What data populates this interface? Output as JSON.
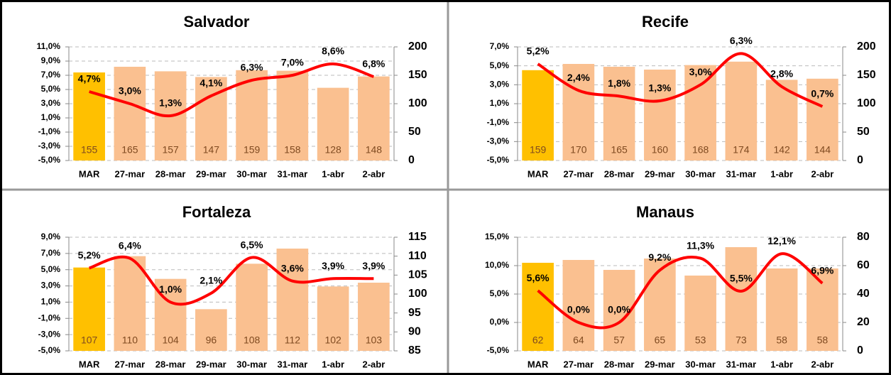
{
  "chart_data": [
    {
      "type": "combo",
      "title": "Salvador",
      "categories": [
        "MAR",
        "27-mar",
        "28-mar",
        "29-mar",
        "30-mar",
        "31-mar",
        "1-abr",
        "2-abr"
      ],
      "ylim": [
        -5,
        11
      ],
      "yticks": [
        {
          "value": -5,
          "label": "-5,0%"
        },
        {
          "value": -3,
          "label": "-3,0%"
        },
        {
          "value": -1,
          "label": "-1,0%"
        },
        {
          "value": 1,
          "label": "1,0%"
        },
        {
          "value": 3,
          "label": "3,0%"
        },
        {
          "value": 5,
          "label": "5,0%"
        },
        {
          "value": 7,
          "label": "7,0%"
        },
        {
          "value": 9,
          "label": "9,0%"
        },
        {
          "value": 11,
          "label": "11,0%"
        }
      ],
      "y2lim": [
        0,
        200
      ],
      "y2ticks": [
        0,
        50,
        100,
        150,
        200
      ],
      "grid": true,
      "series": [
        {
          "type": "bar",
          "axis": "y2",
          "color": "#fac090",
          "first_color": "#ffc000",
          "values": [
            155,
            165,
            157,
            147,
            159,
            158,
            128,
            148
          ]
        },
        {
          "type": "line",
          "color": "#ff0000",
          "values": [
            4.7,
            3.0,
            1.3,
            4.1,
            6.3,
            7.0,
            8.6,
            6.8
          ],
          "value_labels": [
            "4,7%",
            "3,0%",
            "1,3%",
            "4,1%",
            "6,3%",
            "7,0%",
            "8,6%",
            "6,8%"
          ]
        }
      ]
    },
    {
      "type": "combo",
      "title": "Recife",
      "categories": [
        "MAR",
        "27-mar",
        "28-mar",
        "29-mar",
        "30-mar",
        "31-mar",
        "1-abr",
        "2-abr"
      ],
      "ylim": [
        -5,
        7
      ],
      "yticks": [
        {
          "value": -5,
          "label": "-5,0%"
        },
        {
          "value": -3,
          "label": "-3,0%"
        },
        {
          "value": -1,
          "label": "-1,0%"
        },
        {
          "value": 1,
          "label": "1,0%"
        },
        {
          "value": 3,
          "label": "3,0%"
        },
        {
          "value": 5,
          "label": "5,0%"
        },
        {
          "value": 7,
          "label": "7,0%"
        }
      ],
      "y2lim": [
        0,
        200
      ],
      "y2ticks": [
        0,
        50,
        100,
        150,
        200
      ],
      "grid": true,
      "series": [
        {
          "type": "bar",
          "axis": "y2",
          "color": "#fac090",
          "first_color": "#ffc000",
          "values": [
            159,
            170,
            165,
            160,
            168,
            174,
            142,
            144
          ]
        },
        {
          "type": "line",
          "color": "#ff0000",
          "values": [
            5.2,
            2.4,
            1.8,
            1.3,
            3.0,
            6.3,
            2.8,
            0.7
          ],
          "value_labels": [
            "5,2%",
            "2,4%",
            "1,8%",
            "1,3%",
            "3,0%",
            "6,3%",
            "2,8%",
            "0,7%"
          ]
        }
      ]
    },
    {
      "type": "combo",
      "title": "Fortaleza",
      "categories": [
        "MAR",
        "27-mar",
        "28-mar",
        "29-mar",
        "30-mar",
        "31-mar",
        "1-abr",
        "2-abr"
      ],
      "ylim": [
        -5,
        9
      ],
      "yticks": [
        {
          "value": -5,
          "label": "-5,0%"
        },
        {
          "value": -3,
          "label": "-3,0%"
        },
        {
          "value": -1,
          "label": "-1,0%"
        },
        {
          "value": 1,
          "label": "1,0%"
        },
        {
          "value": 3,
          "label": "3,0%"
        },
        {
          "value": 5,
          "label": "5,0%"
        },
        {
          "value": 7,
          "label": "7,0%"
        },
        {
          "value": 9,
          "label": "9,0%"
        }
      ],
      "y2lim": [
        85,
        115
      ],
      "y2ticks": [
        85,
        90,
        95,
        100,
        105,
        110,
        115
      ],
      "grid": true,
      "series": [
        {
          "type": "bar",
          "axis": "y2",
          "color": "#fac090",
          "first_color": "#ffc000",
          "values": [
            107,
            110,
            104,
            96,
            108,
            112,
            102,
            103
          ]
        },
        {
          "type": "line",
          "color": "#ff0000",
          "values": [
            5.2,
            6.4,
            1.0,
            2.1,
            6.5,
            3.6,
            3.9,
            3.9
          ],
          "value_labels": [
            "5,2%",
            "6,4%",
            "1,0%",
            "2,1%",
            "6,5%",
            "3,6%",
            "3,9%",
            "3,9%"
          ]
        }
      ]
    },
    {
      "type": "combo",
      "title": "Manaus",
      "categories": [
        "MAR",
        "27-mar",
        "28-mar",
        "29-mar",
        "30-mar",
        "31-mar",
        "1-abr",
        "2-abr"
      ],
      "ylim": [
        -5,
        15
      ],
      "yticks": [
        {
          "value": -5,
          "label": "-5,0%"
        },
        {
          "value": 0,
          "label": "0,0%"
        },
        {
          "value": 5,
          "label": "5,0%"
        },
        {
          "value": 10,
          "label": "10,0%"
        },
        {
          "value": 15,
          "label": "15,0%"
        }
      ],
      "y2lim": [
        0,
        80
      ],
      "y2ticks": [
        0,
        20,
        40,
        60,
        80
      ],
      "grid": true,
      "series": [
        {
          "type": "bar",
          "axis": "y2",
          "color": "#fac090",
          "first_color": "#ffc000",
          "values": [
            62,
            64,
            57,
            65,
            53,
            73,
            58,
            58
          ]
        },
        {
          "type": "line",
          "color": "#ff0000",
          "values": [
            5.6,
            0.0,
            0.0,
            9.2,
            11.3,
            5.5,
            12.1,
            6.9
          ],
          "value_labels": [
            "5,6%",
            "0,0%",
            "0,0%",
            "9,2%",
            "11,3%",
            "5,5%",
            "12,1%",
            "6,9%"
          ]
        }
      ]
    }
  ]
}
